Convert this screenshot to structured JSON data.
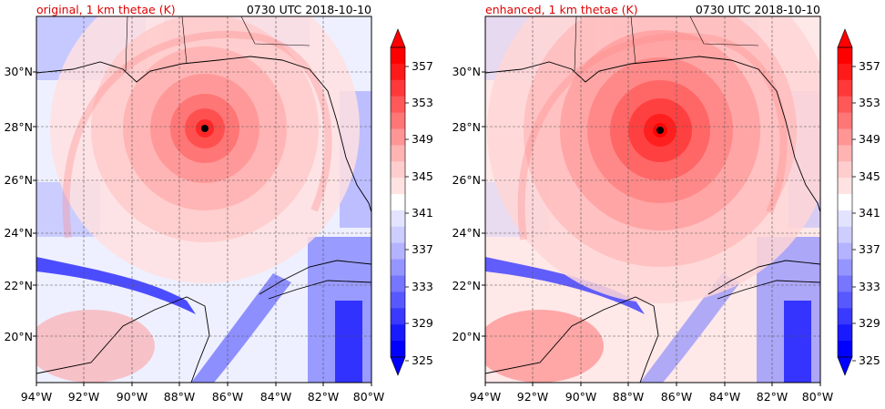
{
  "panels": [
    {
      "title_left": "original, 1 km thetae (K)",
      "title_right": "0730 UTC 2018-10-10",
      "intensity": "original"
    },
    {
      "title_left": "enhanced, 1 km thetae (K)",
      "title_right": "0730 UTC 2018-10-10",
      "intensity": "enhanced"
    }
  ],
  "lat_labels": [
    "30°N",
    "28°N",
    "26°N",
    "24°N",
    "22°N",
    "20°N"
  ],
  "lon_labels": [
    "94°W",
    "92°W",
    "90°W",
    "88°W",
    "86°W",
    "84°W",
    "82°W",
    "80°W"
  ],
  "colorbar": {
    "ticks": [
      "357",
      "353",
      "349",
      "345",
      "341",
      "337",
      "333",
      "329",
      "325"
    ],
    "levels": [
      "#0000ff",
      "#1a1aff",
      "#3939ff",
      "#5858ff",
      "#7676ff",
      "#9595ff",
      "#b3b3ff",
      "#cdcdff",
      "#e3e3ff",
      "#ffffff",
      "#ffe3e3",
      "#ffcdcd",
      "#ffb3b3",
      "#ff9595",
      "#ff7676",
      "#ff5858",
      "#ff3939",
      "#ff1a1a",
      "#ff0000"
    ]
  },
  "storm_marker": "black dot (hurricane center)"
}
